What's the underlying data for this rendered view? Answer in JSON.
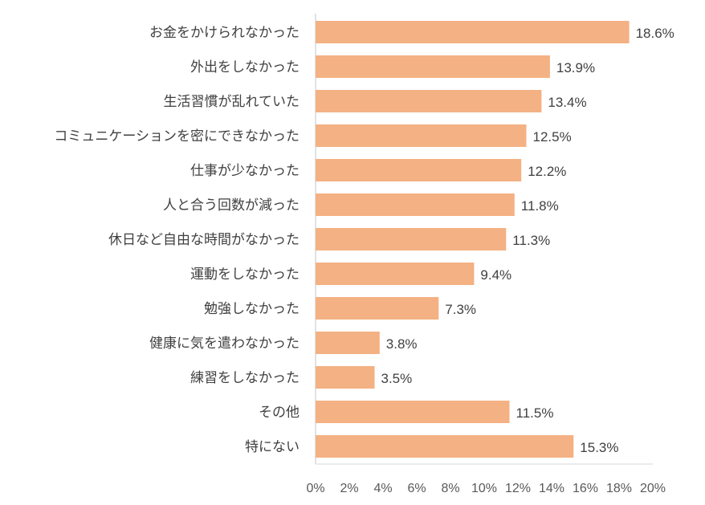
{
  "chart_data": {
    "type": "bar",
    "orientation": "horizontal",
    "categories": [
      "お金をかけられなかった",
      "外出をしなかった",
      "生活習慣が乱れていた",
      "コミュニケーションを密にできなかった",
      "仕事が少なかった",
      "人と合う回数が減った",
      "休日など自由な時間がなかった",
      "運動をしなかった",
      "勉強しなかった",
      "健康に気を遣わなかった",
      "練習をしなかった",
      "その他",
      "特にない"
    ],
    "values": [
      18.6,
      13.9,
      13.4,
      12.5,
      12.2,
      11.8,
      11.3,
      9.4,
      7.3,
      3.8,
      3.5,
      11.5,
      15.3
    ],
    "value_labels": [
      "18.6%",
      "13.9%",
      "13.4%",
      "12.5%",
      "12.2%",
      "11.8%",
      "11.3%",
      "9.4%",
      "7.3%",
      "3.8%",
      "3.5%",
      "11.5%",
      "15.3%"
    ],
    "xlim": [
      0,
      20
    ],
    "x_ticks": [
      0,
      2,
      4,
      6,
      8,
      10,
      12,
      14,
      16,
      18,
      20
    ],
    "x_tick_labels": [
      "0%",
      "2%",
      "4%",
      "6%",
      "8%",
      "10%",
      "12%",
      "14%",
      "16%",
      "18%",
      "20%"
    ],
    "title": "",
    "xlabel": "",
    "ylabel": "",
    "grid": false,
    "legend": "none",
    "bar_color": "#F4B183",
    "axis_color": "#D9D9D9",
    "text_color": "#404040"
  }
}
